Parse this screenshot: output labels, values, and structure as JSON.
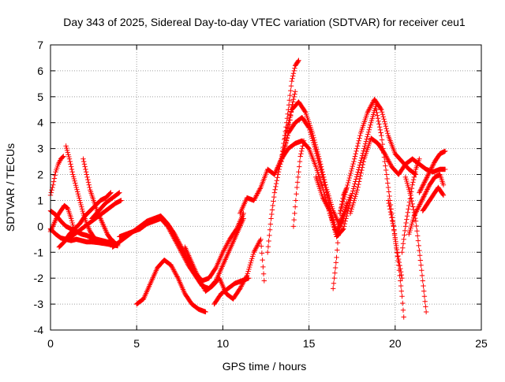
{
  "chart_data": {
    "type": "scatter",
    "title": "Day 343 of 2025, Sidereal Day-to-day VTEC variation (SDTVAR) for receiver ceu1",
    "xlabel": "GPS time / hours",
    "ylabel": "SDTVAR / TECUs",
    "xlim": [
      0,
      25
    ],
    "ylim": [
      -4,
      7
    ],
    "xticks": [
      0,
      5,
      10,
      15,
      20,
      25
    ],
    "yticks": [
      -4,
      -3,
      -2,
      -1,
      0,
      1,
      2,
      3,
      4,
      5,
      6,
      7
    ],
    "grid": true,
    "marker": "+",
    "color": "#ff0000",
    "series": [
      {
        "x": [
          0.0,
          0.3,
          0.6,
          0.9,
          1.2,
          1.5,
          1.8,
          2.1,
          2.4,
          2.7,
          3.0,
          3.3,
          3.6,
          3.9
        ],
        "y": [
          -0.1,
          -0.3,
          -0.45,
          -0.5,
          -0.55,
          -0.5,
          -0.55,
          -0.6,
          -0.6,
          -0.62,
          -0.65,
          -0.68,
          -0.72,
          -0.75
        ]
      },
      {
        "x": [
          0.0,
          0.3,
          0.6,
          0.9,
          1.2,
          1.5,
          1.8,
          2.1,
          2.4,
          2.7,
          3.0,
          3.3,
          3.6,
          3.9
        ],
        "y": [
          0.6,
          0.45,
          0.2,
          0.0,
          -0.1,
          -0.2,
          -0.3,
          -0.35,
          -0.45,
          -0.5,
          -0.55,
          -0.6,
          -0.65,
          -0.7
        ]
      },
      {
        "x": [
          0.0,
          0.15,
          0.3,
          0.45,
          0.6,
          0.75
        ],
        "y": [
          1.2,
          1.6,
          2.1,
          2.4,
          2.6,
          2.7
        ]
      },
      {
        "x": [
          0.0,
          0.2,
          0.4,
          0.6,
          0.8,
          1.0,
          1.2,
          1.4
        ],
        "y": [
          -0.2,
          0.1,
          0.4,
          0.6,
          0.8,
          0.7,
          0.3,
          -0.2
        ]
      },
      {
        "x": [
          0.9,
          1.1,
          1.3,
          1.5,
          1.7,
          1.9,
          2.1,
          2.3,
          2.5
        ],
        "y": [
          3.1,
          2.6,
          2.0,
          1.5,
          1.0,
          0.5,
          0.1,
          -0.2,
          -0.4
        ]
      },
      {
        "x": [
          0.5,
          0.8,
          1.1,
          1.4,
          1.7,
          2.0,
          2.3,
          2.6,
          2.9,
          3.2,
          3.5
        ],
        "y": [
          -0.8,
          -0.6,
          -0.3,
          -0.1,
          0.1,
          0.4,
          0.6,
          0.8,
          1.0,
          1.1,
          1.3
        ]
      },
      {
        "x": [
          1.0,
          1.4,
          1.8,
          2.2,
          2.6,
          3.0,
          3.4,
          3.8,
          4.1
        ],
        "y": [
          -0.5,
          -0.3,
          -0.1,
          0.1,
          0.3,
          0.5,
          0.7,
          0.9,
          1.0
        ]
      },
      {
        "x": [
          1.9,
          2.1,
          2.3,
          2.5,
          2.7,
          2.9,
          3.1,
          3.3,
          3.5,
          3.7
        ],
        "y": [
          2.6,
          2.0,
          1.4,
          1.0,
          0.6,
          0.3,
          0.0,
          -0.3,
          -0.5,
          -0.6
        ]
      },
      {
        "x": [
          2.4,
          2.8,
          3.2,
          3.6,
          4.0
        ],
        "y": [
          0.3,
          0.6,
          0.9,
          1.1,
          1.3
        ]
      },
      {
        "x": [
          3.6,
          4.0,
          4.4,
          4.8,
          5.2,
          5.6,
          6.0,
          6.4,
          6.8,
          7.2,
          7.6,
          8.0,
          8.4,
          8.8,
          9.2,
          9.6,
          10.0,
          10.4,
          10.8,
          11.2
        ],
        "y": [
          -0.8,
          -0.6,
          -0.4,
          -0.2,
          0.0,
          0.2,
          0.3,
          0.4,
          0.1,
          -0.3,
          -0.8,
          -1.3,
          -1.8,
          -2.1,
          -2.0,
          -1.6,
          -1.0,
          -0.5,
          -0.1,
          0.5
        ]
      },
      {
        "x": [
          4.0,
          4.4,
          4.8,
          5.2,
          5.6,
          6.0,
          6.4,
          6.8,
          7.2,
          7.6,
          8.0,
          8.4,
          8.8,
          9.2,
          9.6,
          10.0,
          10.4,
          10.8,
          11.2
        ],
        "y": [
          -0.4,
          -0.3,
          -0.2,
          -0.1,
          0.1,
          0.2,
          0.3,
          0.0,
          -0.5,
          -1.0,
          -1.5,
          -1.9,
          -2.3,
          -2.4,
          -2.1,
          -1.5,
          -0.9,
          -0.3,
          0.3
        ]
      },
      {
        "x": [
          5.0,
          5.4,
          5.8,
          6.2,
          6.6,
          7.0,
          7.4,
          7.8,
          8.2,
          8.6,
          9.0
        ],
        "y": [
          -3.0,
          -2.8,
          -2.2,
          -1.6,
          -1.3,
          -1.5,
          -2.0,
          -2.6,
          -3.0,
          -3.2,
          -3.3
        ]
      },
      {
        "x": [
          7.8,
          8.2,
          8.6,
          9.0,
          9.4,
          9.8,
          10.2,
          10.6,
          11.0,
          11.4,
          11.8,
          12.2,
          12.4
        ],
        "y": [
          -0.8,
          -1.4,
          -2.0,
          -2.5,
          -2.3,
          -2.0,
          -2.6,
          -2.8,
          -2.4,
          -1.9,
          -1.0,
          -0.5,
          -2.1
        ]
      },
      {
        "x": [
          9.5,
          9.9,
          10.3,
          10.7,
          11.1,
          11.5
        ],
        "y": [
          -3.0,
          -2.6,
          -2.4,
          -2.2,
          -2.1,
          -2.0
        ]
      },
      {
        "x": [
          11.0,
          11.4,
          11.8,
          12.2,
          12.6,
          13.0,
          13.4,
          13.8,
          14.0,
          14.2
        ],
        "y": [
          0.5,
          1.1,
          1.0,
          1.5,
          2.2,
          2.0,
          2.6,
          3.6,
          4.6,
          5.2
        ]
      },
      {
        "x": [
          12.6,
          12.8,
          13.0,
          13.2,
          13.4,
          13.6,
          13.8,
          14.0,
          14.2,
          14.4
        ],
        "y": [
          -1.0,
          0.3,
          1.3,
          2.0,
          2.6,
          3.5,
          4.5,
          5.6,
          6.2,
          6.4
        ]
      },
      {
        "x": [
          13.0,
          13.4,
          13.8,
          14.2,
          14.6,
          15.0,
          15.4,
          15.8,
          16.2,
          16.6,
          17.0,
          17.4
        ],
        "y": [
          2.0,
          2.6,
          3.0,
          3.2,
          3.3,
          3.0,
          2.3,
          1.5,
          0.5,
          -0.3,
          0.3,
          1.2
        ]
      },
      {
        "x": [
          13.4,
          13.8,
          14.2,
          14.6,
          15.0,
          15.4,
          15.8,
          16.2,
          16.6,
          17.0
        ],
        "y": [
          2.5,
          3.6,
          4.0,
          4.2,
          3.8,
          2.9,
          1.9,
          0.8,
          -0.2,
          0.5
        ]
      },
      {
        "x": [
          13.6,
          14.0,
          14.4,
          14.8,
          15.2,
          15.6,
          16.0,
          16.4,
          16.8,
          17.2
        ],
        "y": [
          3.4,
          4.5,
          4.8,
          4.4,
          3.6,
          2.6,
          1.5,
          0.6,
          0.0,
          0.9
        ]
      },
      {
        "x": [
          14.1,
          14.3,
          14.5,
          14.7
        ],
        "y": [
          0.0,
          1.5,
          2.7,
          3.3
        ]
      },
      {
        "x": [
          15.4,
          15.8,
          16.2,
          16.6,
          17.0,
          17.4,
          17.8,
          18.2,
          18.6,
          18.9
        ],
        "y": [
          1.9,
          1.1,
          0.6,
          -0.4,
          -0.1,
          1.0,
          2.0,
          3.0,
          4.0,
          4.7
        ]
      },
      {
        "x": [
          16.4,
          16.6,
          16.8,
          17.0,
          17.2
        ],
        "y": [
          -2.4,
          -1.2,
          0.5,
          1.2,
          1.5
        ]
      },
      {
        "x": [
          16.8,
          17.2,
          17.6,
          18.0,
          18.4,
          18.8,
          19.2,
          19.6,
          20.0,
          20.4,
          20.8,
          21.2
        ],
        "y": [
          0.5,
          1.5,
          2.5,
          3.6,
          4.4,
          4.9,
          4.5,
          3.5,
          2.8,
          2.5,
          2.2,
          2.0
        ]
      },
      {
        "x": [
          17.4,
          17.8,
          18.2,
          18.6,
          19.0,
          19.4,
          19.8,
          20.2,
          20.6,
          21.0
        ],
        "y": [
          0.5,
          1.4,
          2.6,
          3.4,
          3.2,
          2.8,
          2.3,
          2.0,
          2.4,
          2.6
        ]
      },
      {
        "x": [
          18.9,
          19.2,
          19.5,
          19.8,
          20.1,
          20.4
        ],
        "y": [
          4.5,
          3.5,
          2.0,
          0.5,
          -0.9,
          -2.0
        ]
      },
      {
        "x": [
          19.6,
          19.9,
          20.2,
          20.4,
          20.5
        ],
        "y": [
          1.0,
          0.0,
          -1.5,
          -2.7,
          -3.5
        ]
      },
      {
        "x": [
          20.4,
          20.6,
          20.8,
          21.0,
          21.2,
          21.4
        ],
        "y": [
          -1.0,
          0.0,
          0.8,
          1.6,
          2.2,
          2.6
        ]
      },
      {
        "x": [
          20.6,
          20.9,
          21.2,
          21.5,
          21.8
        ],
        "y": [
          1.9,
          1.2,
          0.2,
          -1.5,
          -3.3
        ]
      },
      {
        "x": [
          20.8,
          21.1,
          21.4,
          21.7,
          22.0,
          22.3,
          22.6,
          22.8
        ],
        "y": [
          -0.3,
          0.4,
          0.8,
          1.2,
          1.6,
          1.9,
          2.0,
          1.6
        ]
      },
      {
        "x": [
          21.0,
          21.4,
          21.8,
          22.2,
          22.6,
          22.9
        ],
        "y": [
          2.6,
          2.4,
          2.2,
          2.1,
          2.2,
          2.2
        ]
      },
      {
        "x": [
          21.4,
          21.7,
          22.0,
          22.3,
          22.6,
          22.9
        ],
        "y": [
          1.3,
          1.7,
          2.1,
          2.5,
          2.8,
          2.9
        ]
      },
      {
        "x": [
          21.6,
          21.9,
          22.2,
          22.5,
          22.8
        ],
        "y": [
          0.6,
          0.9,
          1.2,
          1.5,
          1.2
        ]
      }
    ]
  }
}
